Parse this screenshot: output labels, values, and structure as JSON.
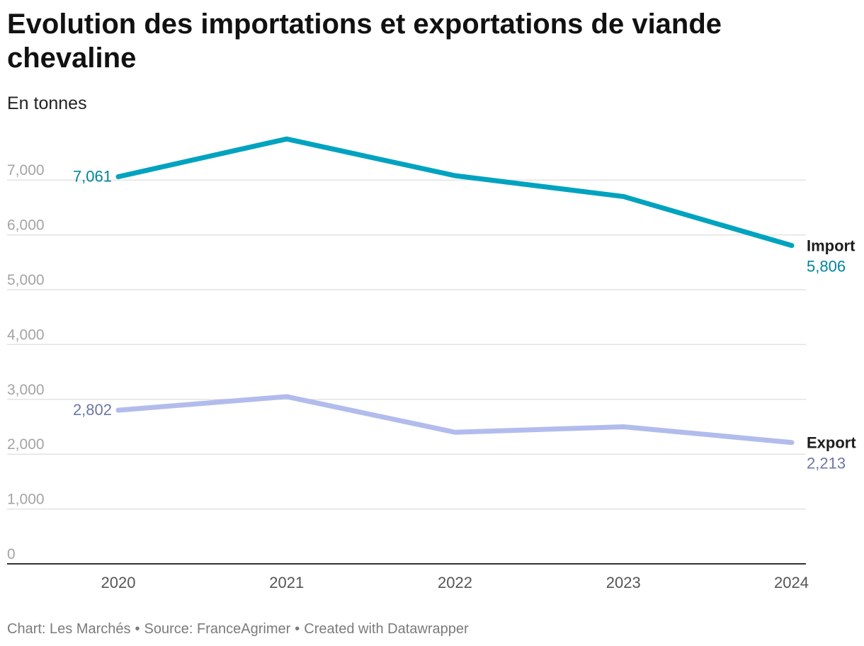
{
  "title": "Evolution des importations et exportations de viande chevaline",
  "subtitle": "En tonnes",
  "footer": {
    "chart_credit": "Chart: Les Marchés",
    "source": "Source: FranceAgrimer",
    "created_with": "Created with Datawrapper",
    "separator": "•"
  },
  "colors": {
    "import": "#00a3bf",
    "import_label": "#00859c",
    "export": "#b2bcec",
    "export_label": "#6c77a6",
    "grid": "#e3e3e3",
    "tick_label": "#a4a4a4",
    "axis": "#333333"
  },
  "chart_data": {
    "type": "line",
    "x": [
      "2020",
      "2021",
      "2022",
      "2023",
      "2024"
    ],
    "ylim": [
      0,
      7800
    ],
    "yticks": [
      0,
      1000,
      2000,
      3000,
      4000,
      5000,
      6000,
      7000
    ],
    "ytick_labels": [
      "0",
      "1,000",
      "2,000",
      "3,000",
      "4,000",
      "5,000",
      "6,000",
      "7,000"
    ],
    "grid": true,
    "series": [
      {
        "name": "Import",
        "key": "import",
        "values": [
          7061,
          7750,
          7080,
          6700,
          5806
        ],
        "start_label": "7,061",
        "end_label": "5,806"
      },
      {
        "name": "Export",
        "key": "export",
        "values": [
          2802,
          3050,
          2400,
          2500,
          2213
        ],
        "start_label": "2,802",
        "end_label": "2,213"
      }
    ]
  }
}
